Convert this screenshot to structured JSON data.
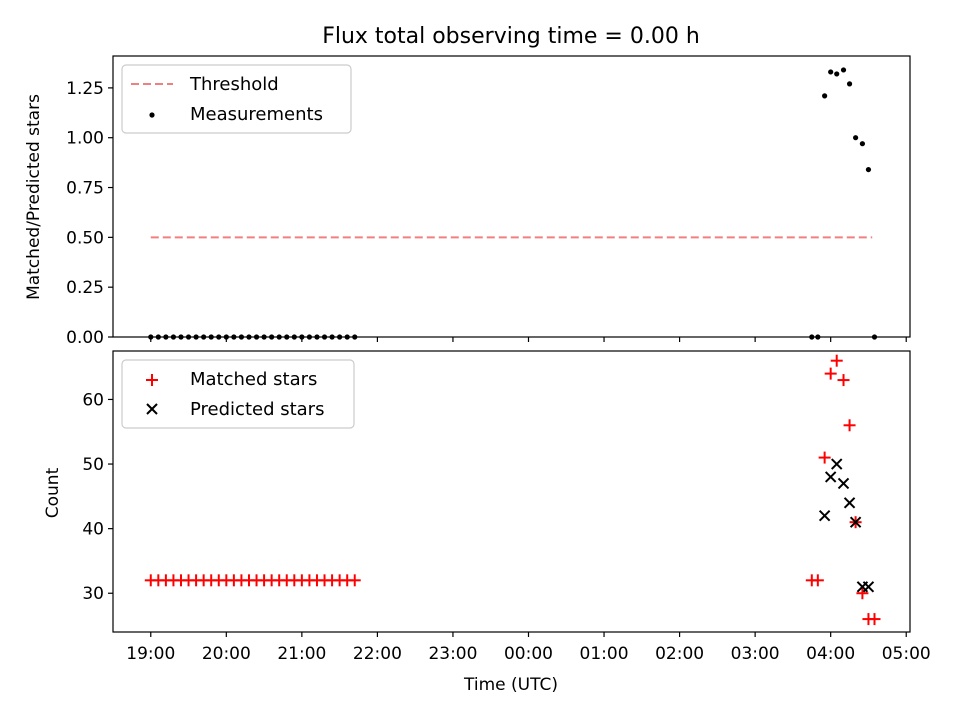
{
  "chart_data": [
    {
      "type": "scatter",
      "title": "Flux total observing time = 0.00 h",
      "xlabel": "",
      "ylabel": "Matched/Predicted stars",
      "xlim": [
        18.5,
        29.05
      ],
      "ylim": [
        0,
        1.41
      ],
      "yticks": [
        0.0,
        0.25,
        0.5,
        0.75,
        1.0,
        1.25
      ],
      "ytick_labels": [
        "0.00",
        "0.25",
        "0.50",
        "0.75",
        "1.00",
        "1.25"
      ],
      "legend_position": "top-left",
      "series": [
        {
          "name": "Threshold",
          "kind": "dashed-line",
          "color": "#f08080",
          "x": [
            19.0,
            28.55
          ],
          "y": [
            0.5,
            0.5
          ]
        },
        {
          "name": "Measurements",
          "kind": "dot",
          "color": "#000000",
          "x": [
            19.0,
            19.1,
            19.2,
            19.3,
            19.4,
            19.5,
            19.6,
            19.7,
            19.8,
            19.9,
            20.0,
            20.1,
            20.2,
            20.3,
            20.4,
            20.5,
            20.6,
            20.7,
            20.8,
            20.9,
            21.0,
            21.1,
            21.2,
            21.3,
            21.4,
            21.5,
            21.6,
            21.7,
            27.75,
            27.83,
            27.92,
            28.0,
            28.08,
            28.17,
            28.25,
            28.33,
            28.42,
            28.5,
            28.58
          ],
          "y": [
            0,
            0,
            0,
            0,
            0,
            0,
            0,
            0,
            0,
            0,
            0,
            0,
            0,
            0,
            0,
            0,
            0,
            0,
            0,
            0,
            0,
            0,
            0,
            0,
            0,
            0,
            0,
            0,
            0,
            0,
            1.21,
            1.33,
            1.32,
            1.34,
            1.27,
            1.0,
            0.97,
            0.84,
            0
          ]
        }
      ]
    },
    {
      "type": "scatter",
      "title": "",
      "xlabel": "Time (UTC)",
      "ylabel": "Count",
      "xlim": [
        18.5,
        29.05
      ],
      "ylim": [
        24,
        67.5
      ],
      "yticks": [
        30,
        40,
        50,
        60
      ],
      "ytick_labels": [
        "30",
        "40",
        "50",
        "60"
      ],
      "xticks": [
        19,
        20,
        21,
        22,
        23,
        24,
        25,
        26,
        27,
        28,
        29
      ],
      "xtick_labels": [
        "19:00",
        "20:00",
        "21:00",
        "22:00",
        "23:00",
        "00:00",
        "01:00",
        "02:00",
        "03:00",
        "04:00",
        "05:00"
      ],
      "legend_position": "top-left",
      "series": [
        {
          "name": "Matched stars",
          "kind": "plus",
          "color": "#ff0000",
          "x": [
            19.0,
            19.1,
            19.2,
            19.3,
            19.4,
            19.5,
            19.6,
            19.7,
            19.8,
            19.9,
            20.0,
            20.1,
            20.2,
            20.3,
            20.4,
            20.5,
            20.6,
            20.7,
            20.8,
            20.9,
            21.0,
            21.1,
            21.2,
            21.3,
            21.4,
            21.5,
            21.6,
            21.7,
            27.75,
            27.83,
            27.92,
            28.0,
            28.08,
            28.17,
            28.25,
            28.33,
            28.42,
            28.5,
            28.58
          ],
          "y": [
            32,
            32,
            32,
            32,
            32,
            32,
            32,
            32,
            32,
            32,
            32,
            32,
            32,
            32,
            32,
            32,
            32,
            32,
            32,
            32,
            32,
            32,
            32,
            32,
            32,
            32,
            32,
            32,
            32,
            32,
            51,
            64,
            66,
            63,
            56,
            41,
            30,
            26,
            26
          ]
        },
        {
          "name": "Predicted stars",
          "kind": "cross",
          "color": "#000000",
          "x": [
            27.92,
            28.0,
            28.08,
            28.17,
            28.25,
            28.33,
            28.42,
            28.5
          ],
          "y": [
            42,
            48,
            50,
            47,
            44,
            41,
            31,
            31
          ]
        }
      ]
    }
  ]
}
